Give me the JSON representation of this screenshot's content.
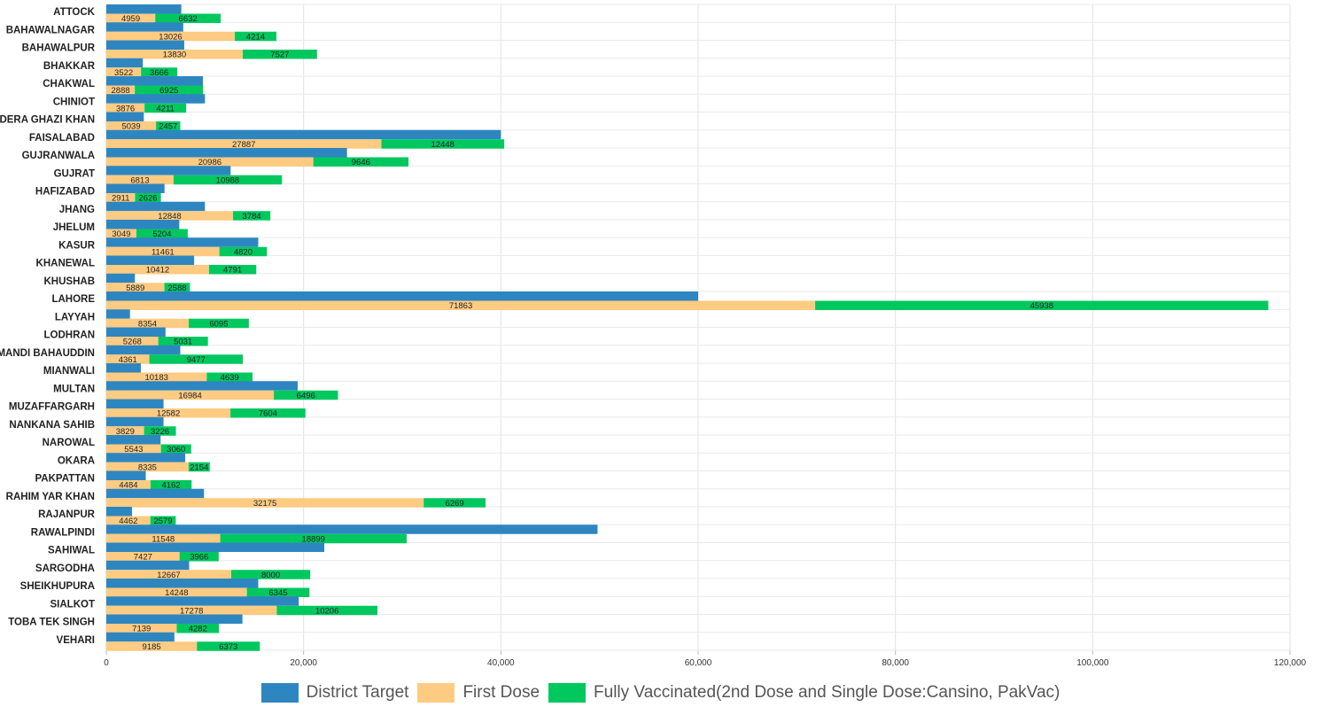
{
  "chart_data": {
    "type": "bar",
    "orientation": "horizontal",
    "categories": [
      "ATTOCK",
      "BAHAWALNAGAR",
      "BAHAWALPUR",
      "BHAKKAR",
      "CHAKWAL",
      "CHINIOT",
      "DERA GHAZI KHAN",
      "FAISALABAD",
      "GUJRANWALA",
      "GUJRAT",
      "HAFIZABAD",
      "JHANG",
      "JHELUM",
      "KASUR",
      "KHANEWAL",
      "KHUSHAB",
      "LAHORE",
      "LAYYAH",
      "LODHRAN",
      "MANDI BAHAUDDIN",
      "MIANWALI",
      "MULTAN",
      "MUZAFFARGARH",
      "NANKANA SAHIB",
      "NAROWAL",
      "OKARA",
      "PAKPATTAN",
      "RAHIM YAR KHAN",
      "RAJANPUR",
      "RAWALPINDI",
      "SAHIWAL",
      "SARGODHA",
      "SHEIKHUPURA",
      "SIALKOT",
      "TOBA TEK SINGH",
      "VEHARI"
    ],
    "series": [
      {
        "name": "District Target",
        "color": "#2e86c1",
        "stack": "target",
        "values": [
          7600,
          7800,
          7900,
          3700,
          9800,
          10000,
          3800,
          40000,
          24400,
          12600,
          5900,
          10000,
          7400,
          15400,
          8900,
          2900,
          60000,
          2400,
          6000,
          7500,
          3500,
          19400,
          5800,
          5800,
          5500,
          8000,
          4000,
          9900,
          2600,
          49800,
          22100,
          8400,
          15400,
          19500,
          13800,
          6900
        ]
      },
      {
        "name": "First Dose",
        "color": "#fdcb82",
        "stack": "doses",
        "show_labels": true,
        "values": [
          4959,
          13026,
          13830,
          3522,
          2888,
          3876,
          5039,
          27887,
          20986,
          6813,
          2911,
          12848,
          3049,
          11461,
          10412,
          5889,
          71863,
          8354,
          5268,
          4361,
          10183,
          16984,
          12582,
          3829,
          5543,
          8335,
          4484,
          32175,
          4462,
          11548,
          7427,
          12667,
          14248,
          17278,
          7139,
          9185
        ]
      },
      {
        "name": "Fully Vaccinated(2nd Dose and Single Dose:Cansino, PakVac)",
        "color": "#00c85f",
        "stack": "doses",
        "show_labels": true,
        "values": [
          6632,
          4214,
          7527,
          3666,
          6925,
          4211,
          2457,
          12448,
          9646,
          10988,
          2626,
          3784,
          5204,
          4820,
          4791,
          2588,
          45938,
          6095,
          5031,
          9477,
          4639,
          6496,
          7604,
          3226,
          3060,
          2154,
          4162,
          6269,
          2579,
          18899,
          3966,
          8000,
          6345,
          10206,
          4282,
          6373
        ]
      }
    ],
    "xlim": [
      0,
      120000
    ],
    "xticks": [
      "0",
      "20,000",
      "40,000",
      "60,000",
      "80,000",
      "100,000",
      "120,000"
    ],
    "xtick_values": [
      0,
      20000,
      40000,
      60000,
      80000,
      100000,
      120000
    ],
    "grid": true,
    "legend_position": "bottom"
  },
  "legend": [
    {
      "label": "District Target",
      "color": "#2e86c1"
    },
    {
      "label": "First Dose",
      "color": "#fdcb82"
    },
    {
      "label": "Fully Vaccinated(2nd Dose and Single Dose:Cansino, PakVac)",
      "color": "#00c85f"
    }
  ]
}
